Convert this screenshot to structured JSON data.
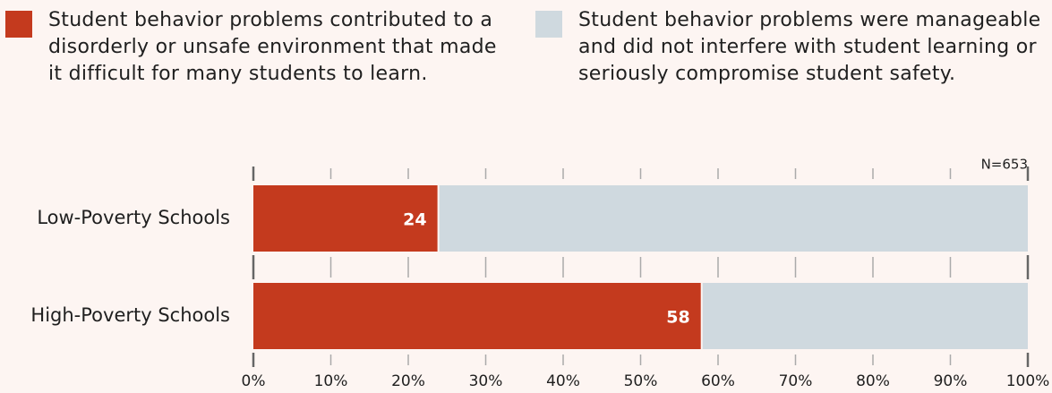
{
  "chart_data": {
    "type": "stacked_bar_horizontal",
    "annotation": "N=653",
    "categories": [
      "Low-Poverty Schools",
      "High-Poverty Schools"
    ],
    "series": [
      {
        "name": "Student behavior problems contributed to a disorderly or unsafe environment that made it difficult for many students to learn.",
        "color": "#c43a1e",
        "values": [
          24,
          58
        ]
      },
      {
        "name": "Student behavior problems were manageable and did not interfere with student learning or seriously compromise student safety.",
        "color": "#cfd9df",
        "values": [
          76,
          42
        ]
      }
    ],
    "xlim": [
      0,
      100
    ],
    "xticks": [
      {
        "value": 0,
        "label": "0%"
      },
      {
        "value": 10,
        "label": "10%"
      },
      {
        "value": 20,
        "label": "20%"
      },
      {
        "value": 30,
        "label": "30%"
      },
      {
        "value": 40,
        "label": "40%"
      },
      {
        "value": 50,
        "label": "50%"
      },
      {
        "value": 60,
        "label": "60%"
      },
      {
        "value": 70,
        "label": "70%"
      },
      {
        "value": 80,
        "label": "80%"
      },
      {
        "value": 90,
        "label": "90%"
      },
      {
        "value": 100,
        "label": "100%"
      }
    ]
  }
}
